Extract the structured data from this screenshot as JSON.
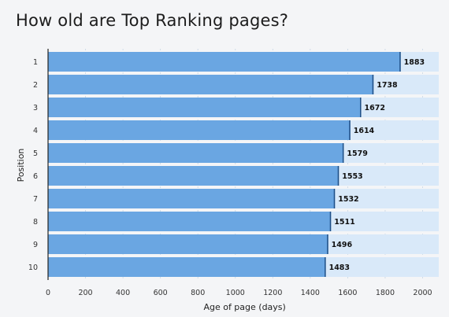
{
  "title": "How old are Top Ranking pages?",
  "colors": {
    "bar": "#6aa6e2",
    "bar_edge": "#1f4f86",
    "track": "#d9e9f9",
    "grid": "#c7d6e4",
    "background": "#f4f5f7"
  },
  "chart_data": {
    "type": "bar",
    "orientation": "horizontal",
    "title": "How old are Top Ranking pages?",
    "xlabel": "Age of page (days)",
    "ylabel": "Position",
    "categories": [
      "1",
      "2",
      "3",
      "4",
      "5",
      "6",
      "7",
      "8",
      "9",
      "10"
    ],
    "values": [
      1883,
      1738,
      1672,
      1614,
      1579,
      1553,
      1532,
      1511,
      1496,
      1483
    ],
    "value_labels": [
      "1883",
      "1738",
      "1672",
      "1614",
      "1579",
      "1553",
      "1532",
      "1511",
      "1496",
      "1483"
    ],
    "xlim": [
      0,
      2100
    ],
    "xticks": [
      0,
      200,
      400,
      600,
      800,
      1000,
      1200,
      1400,
      1600,
      1800,
      2000
    ],
    "xtick_labels": [
      "0",
      "200",
      "400",
      "600",
      "800",
      "1000",
      "1200",
      "1400",
      "1600",
      "1800",
      "2000"
    ],
    "grid": "vertical dashed",
    "legend": "none"
  }
}
